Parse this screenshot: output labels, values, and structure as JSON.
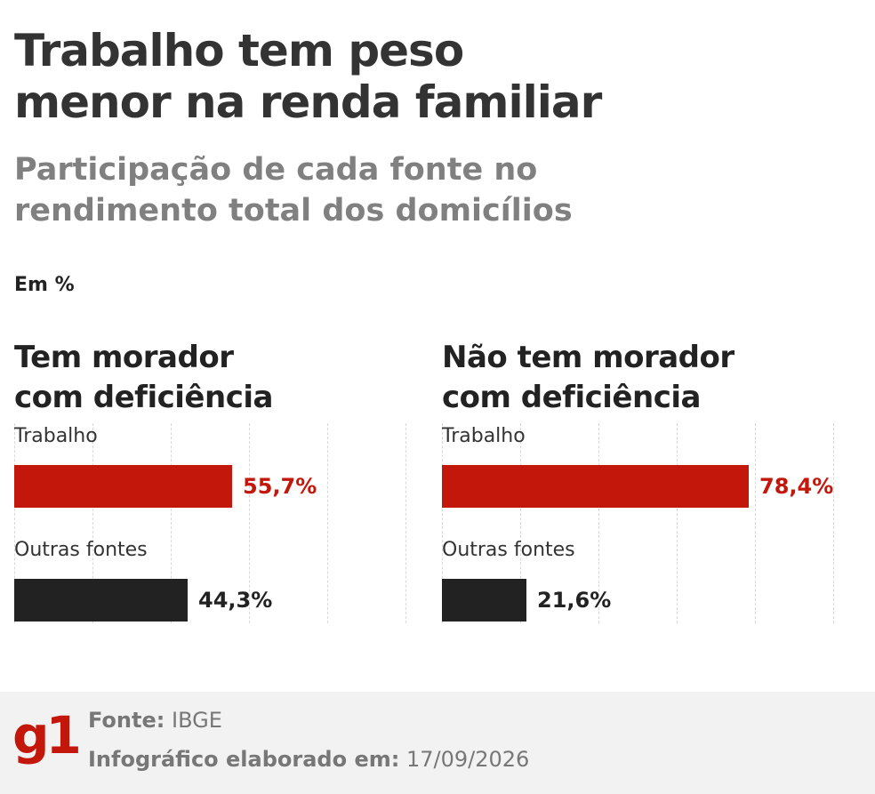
{
  "header": {
    "title_lines": [
      "Trabalho tem peso",
      "menor na renda familiar"
    ],
    "subtitle_lines": [
      "Participação de cada fonte no",
      "rendimento total dos domicílios"
    ],
    "unit": "Em %"
  },
  "chart_data": [
    {
      "type": "bar",
      "orientation": "horizontal",
      "title": "Tem morador com deficiência",
      "title_lines": [
        "Tem morador",
        "com deficiência"
      ],
      "categories": [
        "Trabalho",
        "Outras fontes"
      ],
      "values": [
        55.7,
        44.3
      ],
      "value_labels": [
        "55,7%",
        "44,3%"
      ],
      "colors": [
        "#c4170c",
        "#222222"
      ],
      "xlim": [
        0,
        100
      ],
      "grid": true
    },
    {
      "type": "bar",
      "orientation": "horizontal",
      "title": "Não tem morador com deficiência",
      "title_lines": [
        "Não tem morador",
        "com deficiência"
      ],
      "categories": [
        "Trabalho",
        "Outras fontes"
      ],
      "values": [
        78.4,
        21.6
      ],
      "value_labels": [
        "78,4%",
        "21,6%"
      ],
      "colors": [
        "#c4170c",
        "#222222"
      ],
      "xlim": [
        0,
        100
      ],
      "grid": true
    }
  ],
  "footer": {
    "logo": "g1",
    "source_label": "Fonte:",
    "source_value": "IBGE",
    "date_label": "Infográfico elaborado em:",
    "date_value": "17/09/2026"
  }
}
